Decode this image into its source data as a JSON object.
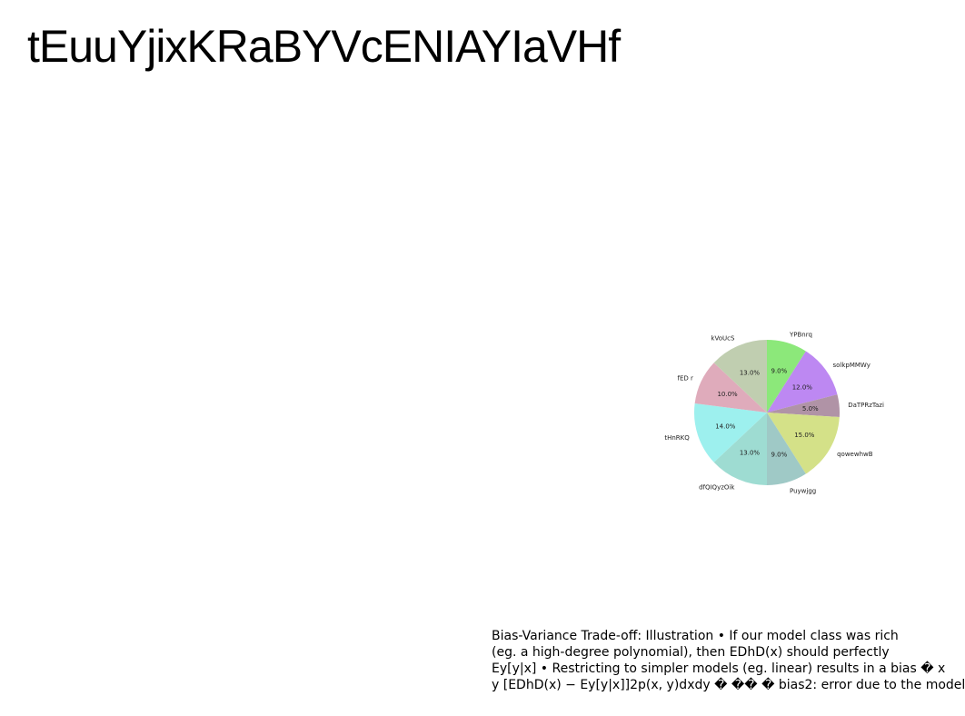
{
  "slide": {
    "title": "tEuuYjixKRaBYVcENIAYIaVHf",
    "body_lines": [
      "Bias-Variance Trade-off: Illustration • If our model class was rich",
      "(eg. a high-degree polynomial), then EDhD(x) should perfectly",
      "Ey[y|x] • Restricting to simpler models (eg. linear) results in a bias � x",
      "y [EDhD(x) − Ey[y|x]]2p(x, y)dxdy � �� � bias2: error due to the model"
    ]
  },
  "chart_data": {
    "type": "pie",
    "start_angle_deg": 90,
    "direction": "clockwise",
    "slices": [
      {
        "label": "YPBnrq",
        "value": 9.0,
        "pct_label": "9.0%",
        "color": "#8ce87a"
      },
      {
        "label": "solkpMMWy",
        "value": 12.0,
        "pct_label": "12.0%",
        "color": "#bd88f2"
      },
      {
        "label": "DaTPRzTazi",
        "value": 5.0,
        "pct_label": "5.0%",
        "color": "#b093a6"
      },
      {
        "label": "qowewhwB",
        "value": 15.0,
        "pct_label": "15.0%",
        "color": "#d4e188"
      },
      {
        "label": "Puywjgg",
        "value": 9.0,
        "pct_label": "9.0%",
        "color": "#9fc9c6"
      },
      {
        "label": "dfQIQyzOik",
        "value": 13.0,
        "pct_label": "13.0%",
        "color": "#9edcd2"
      },
      {
        "label": "tHnRKQ",
        "value": 14.0,
        "pct_label": "14.0%",
        "color": "#9df0ee"
      },
      {
        "label": "fED r",
        "value": 10.0,
        "pct_label": "10.0%",
        "color": "#dfabbb"
      },
      {
        "label": "kVoUcS",
        "value": 13.0,
        "pct_label": "13.0%",
        "color": "#c0ceb0"
      }
    ]
  }
}
